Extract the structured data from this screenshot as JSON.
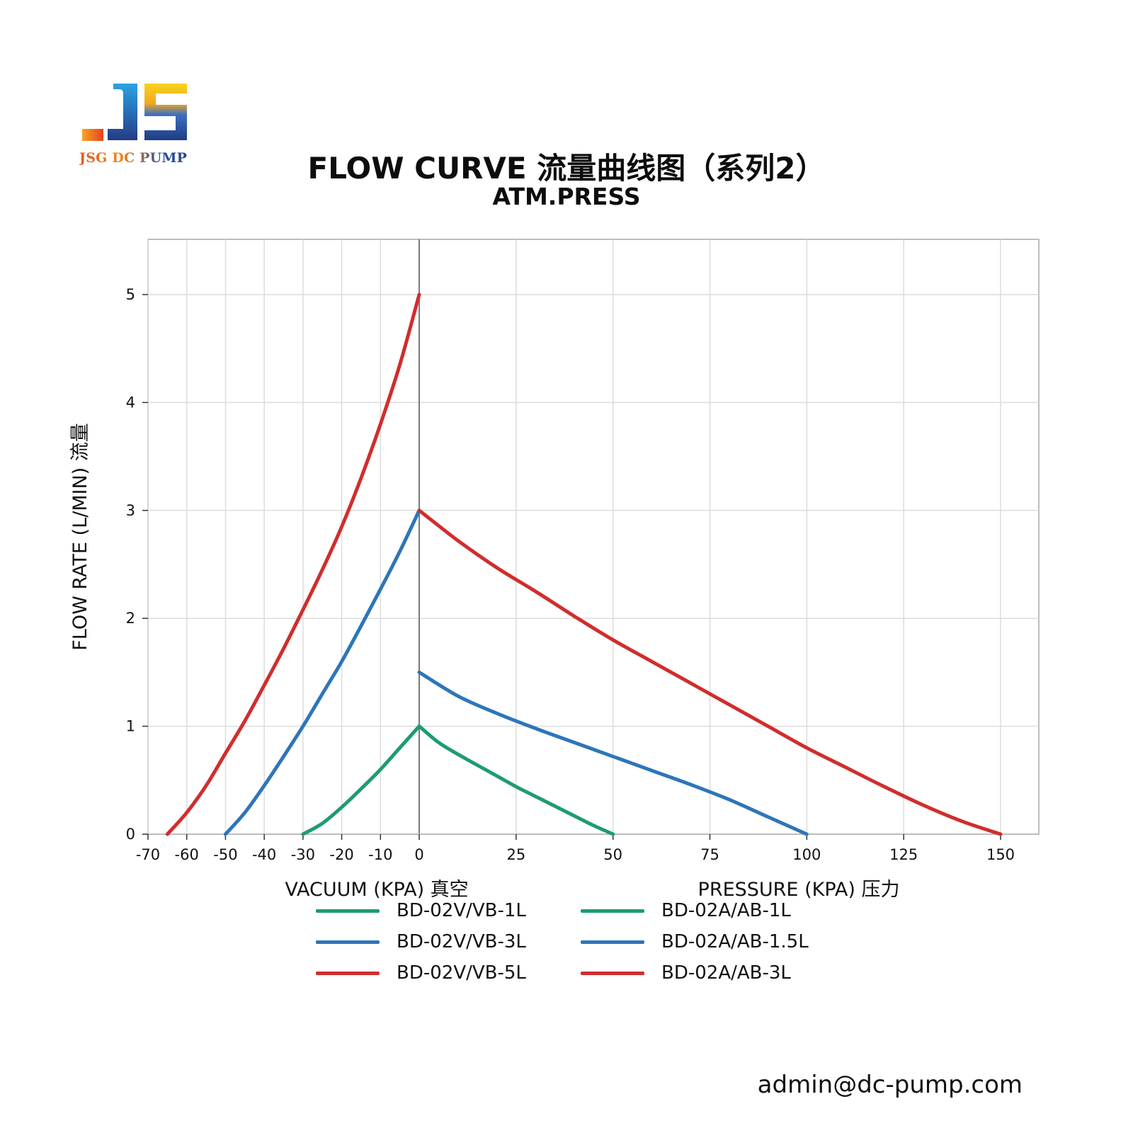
{
  "brand": {
    "logo_text": "JSG DC PUMP"
  },
  "footer": {
    "email": "admin@dc-pump.com"
  },
  "chart_data": {
    "type": "line",
    "title": "FLOW CURVE 流量曲线图（系列2）",
    "subtitle": "ATM.PRESS",
    "ylabel": "FLOW RATE (L/MIN) 流量",
    "xlabel_left": "VACUUM (KPA) 真空",
    "xlabel_right": "PRESSURE (KPA) 压力",
    "ylim": [
      0,
      5.5
    ],
    "yticks": [
      0,
      1,
      2,
      3,
      4,
      5
    ],
    "x_vacuum_ticks": [
      -70,
      -60,
      -50,
      -40,
      -30,
      -20,
      -10,
      0
    ],
    "x_pressure_ticks": [
      25,
      50,
      75,
      100,
      125,
      150
    ],
    "grid": true,
    "legend_position": "bottom",
    "series": [
      {
        "name": "BD-02V/VB-1L",
        "side": "vacuum",
        "color": "#1e9b72",
        "x": [
          -30,
          -25,
          -20,
          -15,
          -10,
          -5,
          0
        ],
        "y": [
          0,
          0.1,
          0.25,
          0.42,
          0.6,
          0.8,
          1.0
        ]
      },
      {
        "name": "BD-02V/VB-3L",
        "side": "vacuum",
        "color": "#2e75b8",
        "x": [
          -50,
          -45,
          -40,
          -35,
          -30,
          -25,
          -20,
          -15,
          -10,
          -5,
          0
        ],
        "y": [
          0,
          0.2,
          0.45,
          0.72,
          1.0,
          1.3,
          1.6,
          1.93,
          2.27,
          2.62,
          3.0
        ]
      },
      {
        "name": "BD-02V/VB-5L",
        "side": "vacuum",
        "color": "#d12d2d",
        "x": [
          -65,
          -60,
          -55,
          -50,
          -45,
          -40,
          -35,
          -30,
          -25,
          -20,
          -15,
          -10,
          -5,
          0
        ],
        "y": [
          0,
          0.2,
          0.45,
          0.75,
          1.05,
          1.38,
          1.72,
          2.08,
          2.45,
          2.85,
          3.3,
          3.8,
          4.35,
          5.0
        ]
      },
      {
        "name": "BD-02A/AB-1L",
        "side": "pressure",
        "color": "#1e9b72",
        "x": [
          0,
          5,
          10,
          15,
          20,
          25,
          30,
          35,
          40,
          45,
          50
        ],
        "y": [
          1.0,
          0.85,
          0.74,
          0.64,
          0.54,
          0.44,
          0.35,
          0.26,
          0.17,
          0.08,
          0
        ]
      },
      {
        "name": "BD-02A/AB-1.5L",
        "side": "pressure",
        "color": "#2e75b8",
        "x": [
          0,
          10,
          20,
          30,
          40,
          50,
          60,
          70,
          80,
          90,
          100
        ],
        "y": [
          1.5,
          1.28,
          1.12,
          0.98,
          0.85,
          0.72,
          0.59,
          0.46,
          0.32,
          0.16,
          0
        ]
      },
      {
        "name": "BD-02A/AB-3L",
        "side": "pressure",
        "color": "#d12d2d",
        "x": [
          0,
          10,
          20,
          30,
          40,
          50,
          60,
          70,
          80,
          90,
          100,
          110,
          120,
          130,
          140,
          150
        ],
        "y": [
          3.0,
          2.72,
          2.47,
          2.25,
          2.02,
          1.8,
          1.6,
          1.4,
          1.2,
          1.0,
          0.8,
          0.62,
          0.44,
          0.27,
          0.12,
          0
        ]
      }
    ]
  }
}
